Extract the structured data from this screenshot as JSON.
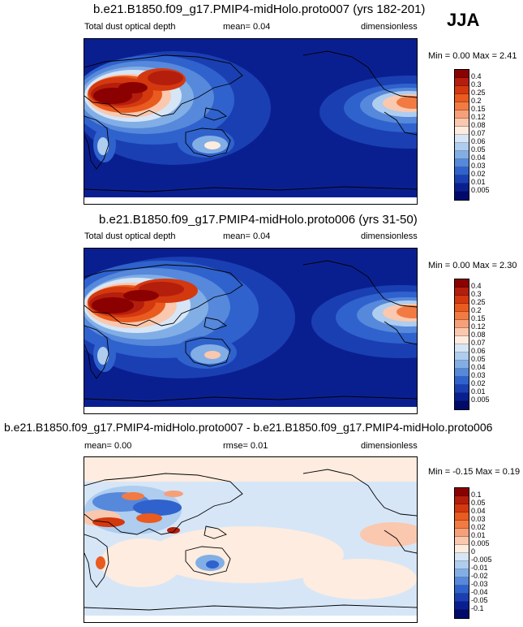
{
  "season": "JJA",
  "panels": [
    {
      "title": "b.e21.B1850.f09_g17.PMIP4-midHolo.proto007 (yrs 182-201)",
      "left_label": "Total dust optical depth",
      "center_label": "mean=  0.04",
      "right_label": "dimensionless",
      "minmax": "Min =  0.00 Max =  2.41",
      "colorbar": {
        "labels": [
          "0.4",
          "0.3",
          "0.25",
          "0.2",
          "0.15",
          "0.12",
          "0.08",
          "0.07",
          "0.06",
          "0.05",
          "0.04",
          "0.03",
          "0.02",
          "0.01",
          "0.005"
        ],
        "colors": [
          "#8b0000",
          "#b41e0c",
          "#d4380f",
          "#e95b1f",
          "#f27a43",
          "#f6a07a",
          "#fac8ae",
          "#fdecdf",
          "#d6e6f7",
          "#aecdef",
          "#82aee6",
          "#5688db",
          "#2f62cc",
          "#1a3fb3",
          "#0a1f8f",
          "#000a6b"
        ]
      }
    },
    {
      "title": "b.e21.B1850.f09_g17.PMIP4-midHolo.proto006 (yrs 31-50)",
      "left_label": "Total dust optical depth",
      "center_label": "mean=  0.04",
      "right_label": "dimensionless",
      "minmax": "Min =  0.00 Max =  2.30",
      "colorbar": {
        "labels": [
          "0.4",
          "0.3",
          "0.25",
          "0.2",
          "0.15",
          "0.12",
          "0.08",
          "0.07",
          "0.06",
          "0.05",
          "0.04",
          "0.03",
          "0.02",
          "0.01",
          "0.005"
        ],
        "colors": [
          "#8b0000",
          "#b41e0c",
          "#d4380f",
          "#e95b1f",
          "#f27a43",
          "#f6a07a",
          "#fac8ae",
          "#fdecdf",
          "#d6e6f7",
          "#aecdef",
          "#82aee6",
          "#5688db",
          "#2f62cc",
          "#1a3fb3",
          "#0a1f8f",
          "#000a6b"
        ]
      }
    },
    {
      "title": "b.e21.B1850.f09_g17.PMIP4-midHolo.proto007 - b.e21.B1850.f09_g17.PMIP4-midHolo.proto006",
      "left_label": "mean=  0.00",
      "center_label": "rmse=  0.01",
      "right_label": "dimensionless",
      "minmax": "Min = -0.15 Max =  0.19",
      "colorbar": {
        "labels": [
          "0.1",
          "0.05",
          "0.04",
          "0.03",
          "0.02",
          "0.01",
          "0.005",
          "0",
          "-0.005",
          "-0.01",
          "-0.02",
          "-0.03",
          "-0.04",
          "-0.05",
          "-0.1"
        ],
        "colors": [
          "#8b0000",
          "#b41e0c",
          "#d4380f",
          "#e95b1f",
          "#f27a43",
          "#f6a07a",
          "#fac8ae",
          "#fdecdf",
          "#d6e6f7",
          "#aecdef",
          "#82aee6",
          "#5688db",
          "#2f62cc",
          "#1a3fb3",
          "#0a1f8f",
          "#000a6b"
        ]
      }
    }
  ]
}
